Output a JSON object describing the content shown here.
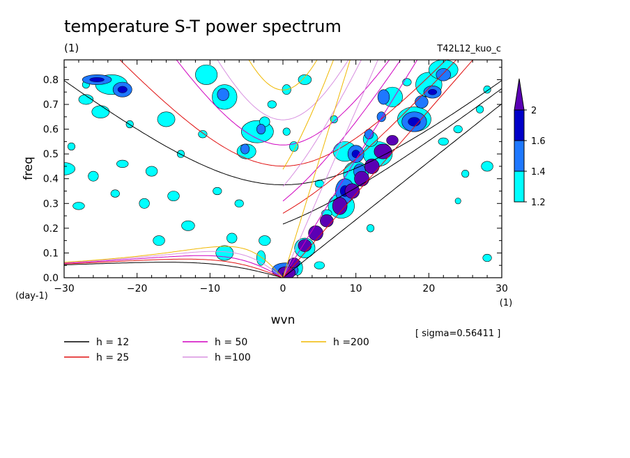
{
  "chart_data": {
    "type": "contour",
    "title": "temperature S-T power spectrum",
    "title_units": "(1)",
    "run_label": "T42L12_kuo_c",
    "xlabel": "wvn",
    "x_units": "(1)",
    "ylabel": "freq",
    "y_units": "(day-1)",
    "xlim": [
      -30,
      30
    ],
    "ylim": [
      0,
      0.88
    ],
    "x_ticks": [
      "-30",
      "-20",
      "-10",
      "0",
      "10",
      "20",
      "30"
    ],
    "y_ticks": [
      "0.0",
      "0.1",
      "0.2",
      "0.3",
      "0.4",
      "0.5",
      "0.6",
      "0.7",
      "0.8"
    ],
    "sigma_text": "[ sigma=0.56411 ]",
    "colorbar": {
      "levels": [
        "1.2",
        "1.4",
        "1.6",
        "2"
      ],
      "colors": [
        "#00ffff",
        "#1e78ff",
        "#0000c8",
        "#5a00b4"
      ]
    },
    "series": [
      {
        "name": "h = 12",
        "h": 12,
        "color": "#000000"
      },
      {
        "name": "h = 25",
        "h": 25,
        "color": "#e01010"
      },
      {
        "name": "h = 50",
        "h": 50,
        "color": "#d000c0"
      },
      {
        "name": "h =100",
        "h": 100,
        "color": "#d890e0"
      },
      {
        "name": "h =200",
        "h": 200,
        "color": "#f0b800"
      }
    ],
    "spectral_blobs": [
      {
        "x": 0.5,
        "y": 0.02,
        "rx": 1.2,
        "ry": 0.025,
        "level": 3
      },
      {
        "x": 1.5,
        "y": 0.06,
        "rx": 0.8,
        "ry": 0.02,
        "level": 3
      },
      {
        "x": 3.0,
        "y": 0.13,
        "rx": 0.9,
        "ry": 0.025,
        "level": 3
      },
      {
        "x": 4.5,
        "y": 0.18,
        "rx": 1.0,
        "ry": 0.03,
        "level": 3
      },
      {
        "x": 6.0,
        "y": 0.23,
        "rx": 0.9,
        "ry": 0.025,
        "level": 3
      },
      {
        "x": 7.8,
        "y": 0.29,
        "rx": 1.0,
        "ry": 0.035,
        "level": 3
      },
      {
        "x": 9.5,
        "y": 0.35,
        "rx": 1.0,
        "ry": 0.03,
        "level": 3
      },
      {
        "x": 10.8,
        "y": 0.4,
        "rx": 1.0,
        "ry": 0.03,
        "level": 3
      },
      {
        "x": 12.2,
        "y": 0.45,
        "rx": 1.0,
        "ry": 0.03,
        "level": 3
      },
      {
        "x": 13.7,
        "y": 0.51,
        "rx": 1.2,
        "ry": 0.03,
        "level": 3
      },
      {
        "x": 15.0,
        "y": 0.555,
        "rx": 0.8,
        "ry": 0.02,
        "level": 3
      },
      {
        "x": 8.5,
        "y": 0.35,
        "rx": 1.3,
        "ry": 0.05,
        "level": 2
      },
      {
        "x": 10.5,
        "y": 0.43,
        "rx": 0.8,
        "ry": 0.03,
        "level": 2
      },
      {
        "x": 10.0,
        "y": 0.5,
        "rx": 1.1,
        "ry": 0.035,
        "level": 2
      },
      {
        "x": 11.8,
        "y": 0.58,
        "rx": 0.6,
        "ry": 0.02,
        "level": 2
      },
      {
        "x": 13.5,
        "y": 0.65,
        "rx": 0.6,
        "ry": 0.02,
        "level": 2
      },
      {
        "x": 18.0,
        "y": 0.63,
        "rx": 1.7,
        "ry": 0.04,
        "level": 2
      },
      {
        "x": 20.5,
        "y": 0.75,
        "rx": 1.2,
        "ry": 0.025,
        "level": 2
      },
      {
        "x": 22.0,
        "y": 0.82,
        "rx": 1.0,
        "ry": 0.025,
        "level": 2
      },
      {
        "x": 13.8,
        "y": 0.73,
        "rx": 0.8,
        "ry": 0.03,
        "level": 2
      },
      {
        "x": 19.0,
        "y": 0.71,
        "rx": 0.9,
        "ry": 0.025,
        "level": 2
      },
      {
        "x": 0.3,
        "y": 0.03,
        "rx": 1.8,
        "ry": 0.03,
        "level": 2
      },
      {
        "x": -25.5,
        "y": 0.8,
        "rx": 2.0,
        "ry": 0.02,
        "level": 2
      },
      {
        "x": -22,
        "y": 0.76,
        "rx": 1.3,
        "ry": 0.03,
        "level": 2
      },
      {
        "x": -8.2,
        "y": 0.74,
        "rx": 0.8,
        "ry": 0.025,
        "level": 2
      },
      {
        "x": -3.0,
        "y": 0.6,
        "rx": 0.6,
        "ry": 0.02,
        "level": 2
      },
      {
        "x": -5.2,
        "y": 0.52,
        "rx": 0.6,
        "ry": 0.02,
        "level": 2
      },
      {
        "x": -3.5,
        "y": 0.59,
        "rx": 2.2,
        "ry": 0.045,
        "level": 1
      },
      {
        "x": -8.0,
        "y": 0.73,
        "rx": 1.7,
        "ry": 0.05,
        "level": 1
      },
      {
        "x": -10.5,
        "y": 0.82,
        "rx": 1.5,
        "ry": 0.04,
        "level": 1
      },
      {
        "x": -16,
        "y": 0.64,
        "rx": 1.2,
        "ry": 0.03,
        "level": 1
      },
      {
        "x": -23.5,
        "y": 0.78,
        "rx": 2.2,
        "ry": 0.04,
        "level": 1
      },
      {
        "x": -27,
        "y": 0.72,
        "rx": 1.0,
        "ry": 0.02,
        "level": 1
      },
      {
        "x": -25,
        "y": 0.67,
        "rx": 1.2,
        "ry": 0.025,
        "level": 1
      },
      {
        "x": -30,
        "y": 0.44,
        "rx": 1.5,
        "ry": 0.025,
        "level": 1
      },
      {
        "x": -26,
        "y": 0.41,
        "rx": 0.7,
        "ry": 0.02,
        "level": 1
      },
      {
        "x": -22,
        "y": 0.46,
        "rx": 0.8,
        "ry": 0.015,
        "level": 1
      },
      {
        "x": -18,
        "y": 0.43,
        "rx": 0.8,
        "ry": 0.02,
        "level": 1
      },
      {
        "x": -23,
        "y": 0.34,
        "rx": 0.6,
        "ry": 0.015,
        "level": 1
      },
      {
        "x": -19,
        "y": 0.3,
        "rx": 0.7,
        "ry": 0.02,
        "level": 1
      },
      {
        "x": -15,
        "y": 0.33,
        "rx": 0.8,
        "ry": 0.02,
        "level": 1
      },
      {
        "x": -9,
        "y": 0.35,
        "rx": 0.6,
        "ry": 0.015,
        "level": 1
      },
      {
        "x": -6,
        "y": 0.3,
        "rx": 0.6,
        "ry": 0.015,
        "level": 1
      },
      {
        "x": -28,
        "y": 0.29,
        "rx": 0.8,
        "ry": 0.015,
        "level": 1
      },
      {
        "x": -13,
        "y": 0.21,
        "rx": 0.9,
        "ry": 0.02,
        "level": 1
      },
      {
        "x": -17,
        "y": 0.15,
        "rx": 0.8,
        "ry": 0.02,
        "level": 1
      },
      {
        "x": -7,
        "y": 0.16,
        "rx": 0.7,
        "ry": 0.02,
        "level": 1
      },
      {
        "x": -8,
        "y": 0.1,
        "rx": 1.2,
        "ry": 0.03,
        "level": 1
      },
      {
        "x": -2.5,
        "y": 0.15,
        "rx": 0.8,
        "ry": 0.02,
        "level": 1
      },
      {
        "x": -3,
        "y": 0.08,
        "rx": 0.6,
        "ry": 0.03,
        "level": 1
      },
      {
        "x": 2,
        "y": 0.04,
        "rx": 0.7,
        "ry": 0.03,
        "level": 1
      },
      {
        "x": 3,
        "y": 0.12,
        "rx": 1.4,
        "ry": 0.04,
        "level": 1
      },
      {
        "x": 8,
        "y": 0.29,
        "rx": 1.8,
        "ry": 0.05,
        "level": 1
      },
      {
        "x": 10,
        "y": 0.42,
        "rx": 1.7,
        "ry": 0.05,
        "level": 1
      },
      {
        "x": 13,
        "y": 0.5,
        "rx": 2.0,
        "ry": 0.05,
        "level": 1
      },
      {
        "x": 18,
        "y": 0.64,
        "rx": 2.3,
        "ry": 0.05,
        "level": 1
      },
      {
        "x": 15,
        "y": 0.73,
        "rx": 1.4,
        "ry": 0.04,
        "level": 1
      },
      {
        "x": 20,
        "y": 0.78,
        "rx": 1.8,
        "ry": 0.05,
        "level": 1
      },
      {
        "x": 22,
        "y": 0.84,
        "rx": 2.0,
        "ry": 0.04,
        "level": 1
      },
      {
        "x": 12,
        "y": 0.56,
        "rx": 1.0,
        "ry": 0.03,
        "level": 1
      },
      {
        "x": 8.5,
        "y": 0.51,
        "rx": 1.6,
        "ry": 0.04,
        "level": 1
      },
      {
        "x": 5,
        "y": 0.38,
        "rx": 0.6,
        "ry": 0.015,
        "level": 1
      },
      {
        "x": 6,
        "y": 0.26,
        "rx": 0.7,
        "ry": 0.015,
        "level": 1
      },
      {
        "x": 5,
        "y": 0.05,
        "rx": 0.7,
        "ry": 0.015,
        "level": 1
      },
      {
        "x": 3,
        "y": 0.8,
        "rx": 0.9,
        "ry": 0.02,
        "level": 1
      },
      {
        "x": 0.5,
        "y": 0.76,
        "rx": 0.6,
        "ry": 0.02,
        "level": 1
      },
      {
        "x": -5,
        "y": 0.51,
        "rx": 1.3,
        "ry": 0.03,
        "level": 1
      },
      {
        "x": -2.5,
        "y": 0.63,
        "rx": 0.7,
        "ry": 0.02,
        "level": 1
      },
      {
        "x": 1.5,
        "y": 0.53,
        "rx": 0.6,
        "ry": 0.02,
        "level": 1
      },
      {
        "x": 0.5,
        "y": 0.59,
        "rx": 0.5,
        "ry": 0.015,
        "level": 1
      },
      {
        "x": -1.5,
        "y": 0.7,
        "rx": 0.6,
        "ry": 0.015,
        "level": 1
      },
      {
        "x": 22,
        "y": 0.55,
        "rx": 0.7,
        "ry": 0.015,
        "level": 1
      },
      {
        "x": 28,
        "y": 0.45,
        "rx": 0.8,
        "ry": 0.02,
        "level": 1
      },
      {
        "x": 25,
        "y": 0.42,
        "rx": 0.5,
        "ry": 0.015,
        "level": 1
      },
      {
        "x": 24,
        "y": 0.6,
        "rx": 0.6,
        "ry": 0.015,
        "level": 1
      },
      {
        "x": 27,
        "y": 0.68,
        "rx": 0.5,
        "ry": 0.015,
        "level": 1
      },
      {
        "x": 12,
        "y": 0.2,
        "rx": 0.5,
        "ry": 0.015,
        "level": 1
      },
      {
        "x": 28,
        "y": 0.08,
        "rx": 0.6,
        "ry": 0.015,
        "level": 1
      },
      {
        "x": 24,
        "y": 0.31,
        "rx": 0.4,
        "ry": 0.012,
        "level": 1
      },
      {
        "x": -14,
        "y": 0.5,
        "rx": 0.5,
        "ry": 0.015,
        "level": 1
      },
      {
        "x": -11,
        "y": 0.58,
        "rx": 0.6,
        "ry": 0.015,
        "level": 1
      },
      {
        "x": 7,
        "y": 0.64,
        "rx": 0.5,
        "ry": 0.015,
        "level": 1
      },
      {
        "x": -21,
        "y": 0.62,
        "rx": 0.5,
        "ry": 0.015,
        "level": 1
      },
      {
        "x": -29,
        "y": 0.53,
        "rx": 0.5,
        "ry": 0.015,
        "level": 1
      },
      {
        "x": -27,
        "y": 0.78,
        "rx": 0.5,
        "ry": 0.015,
        "level": 1
      },
      {
        "x": 17,
        "y": 0.79,
        "rx": 0.6,
        "ry": 0.015,
        "level": 1
      },
      {
        "x": 28,
        "y": 0.76,
        "rx": 0.5,
        "ry": 0.015,
        "level": 1
      }
    ]
  }
}
